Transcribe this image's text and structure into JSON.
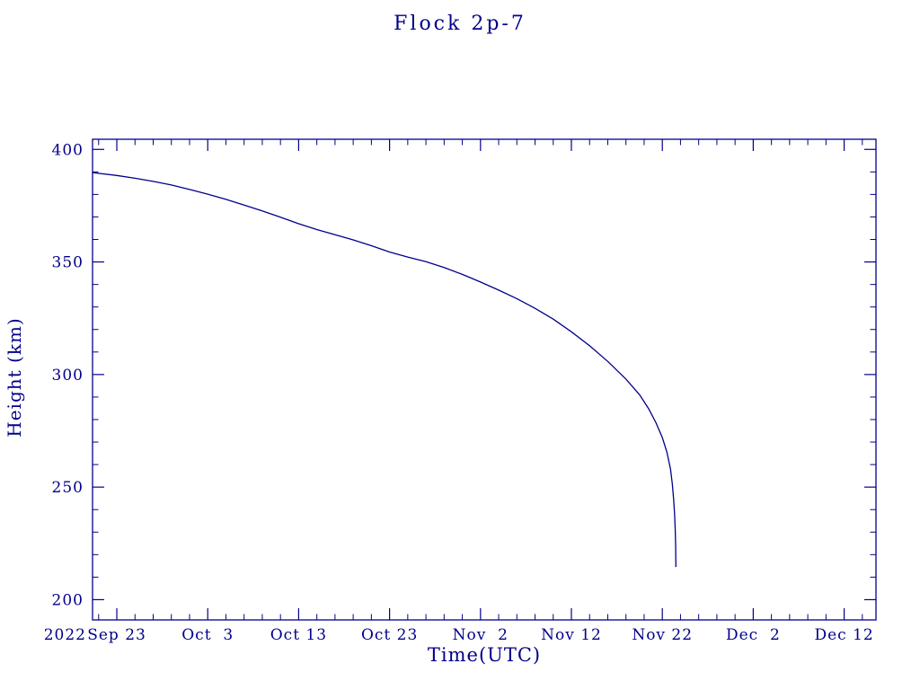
{
  "chart": {
    "title": "Flock 2p-7",
    "xlabel": "Time(UTC)",
    "ylabel": "Height (km)",
    "year_label": "2022",
    "color": "#00008B"
  },
  "chart_data": {
    "type": "line",
    "title": "Flock 2p-7",
    "xlabel": "Time(UTC)",
    "ylabel": "Height (km)",
    "x_unit": "days since 2022 Sep 23",
    "year_label": "2022",
    "x_tick_labels": [
      "Sep 23",
      "Oct  3",
      "Oct 13",
      "Oct 23",
      "Nov  2",
      "Nov 12",
      "Nov 22",
      "Dec  2",
      "Dec 12"
    ],
    "x_tick_positions": [
      0,
      10,
      20,
      30,
      40,
      50,
      60,
      70,
      80
    ],
    "x_domain": [
      -2.67,
      83.5
    ],
    "x_minor_step": 2,
    "y_ticks": [
      200,
      250,
      300,
      350,
      400
    ],
    "y_domain": [
      191,
      404.5
    ],
    "y_minor_step": 10,
    "grid": false,
    "legend": false,
    "line_color": "#00008B",
    "series": [
      {
        "name": "Flock 2p-7 height",
        "points": [
          [
            -2.67,
            389.7
          ],
          [
            0,
            388.4
          ],
          [
            2,
            387.2
          ],
          [
            4,
            385.8
          ],
          [
            6,
            384.2
          ],
          [
            8,
            382.2
          ],
          [
            10,
            380.1
          ],
          [
            12,
            377.8
          ],
          [
            14,
            375.3
          ],
          [
            16,
            372.7
          ],
          [
            18,
            369.9
          ],
          [
            20,
            367.0
          ],
          [
            22,
            364.4
          ],
          [
            24,
            362.1
          ],
          [
            26,
            359.8
          ],
          [
            28,
            357.2
          ],
          [
            30,
            354.4
          ],
          [
            32,
            352.2
          ],
          [
            34,
            350.1
          ],
          [
            36,
            347.5
          ],
          [
            38,
            344.5
          ],
          [
            40,
            341.1
          ],
          [
            42,
            337.5
          ],
          [
            44,
            333.7
          ],
          [
            46,
            329.4
          ],
          [
            48,
            324.6
          ],
          [
            50,
            319.0
          ],
          [
            52,
            312.8
          ],
          [
            54,
            305.8
          ],
          [
            56,
            298.0
          ],
          [
            57.5,
            291.0
          ],
          [
            58.5,
            284.8
          ],
          [
            59.3,
            278.6
          ],
          [
            60.0,
            272.0
          ],
          [
            60.5,
            265.5
          ],
          [
            60.9,
            258.0
          ],
          [
            61.1,
            251.5
          ],
          [
            61.25,
            244.5
          ],
          [
            61.35,
            237.5
          ],
          [
            61.42,
            230.5
          ],
          [
            61.46,
            224.0
          ],
          [
            61.48,
            218.5
          ],
          [
            61.49,
            214.5
          ]
        ]
      }
    ]
  }
}
